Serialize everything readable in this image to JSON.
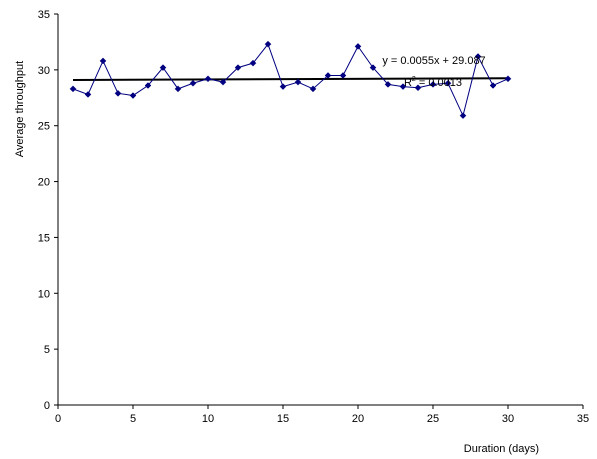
{
  "chart_data": {
    "type": "scatter",
    "xlabel": "Duration (days)",
    "ylabel": "Average throughput",
    "xlim": [
      0,
      35
    ],
    "ylim": [
      0,
      35
    ],
    "xticks": [
      0,
      5,
      10,
      15,
      20,
      25,
      30,
      35
    ],
    "yticks": [
      0,
      5,
      10,
      15,
      20,
      25,
      30,
      35
    ],
    "grid": false,
    "series": [
      {
        "color": "#000080",
        "marker": "diamond",
        "x": [
          1,
          2,
          3,
          4,
          5,
          6,
          7,
          8,
          9,
          10,
          11,
          12,
          13,
          14,
          15,
          16,
          17,
          18,
          19,
          20,
          21,
          22,
          23,
          24,
          25,
          26,
          27,
          28,
          29,
          30
        ],
        "y": [
          28.3,
          27.8,
          30.8,
          27.9,
          27.7,
          28.6,
          30.2,
          28.3,
          28.8,
          29.2,
          28.9,
          30.2,
          30.6,
          32.3,
          28.5,
          28.9,
          28.3,
          29.5,
          29.5,
          32.1,
          30.2,
          28.7,
          28.5,
          28.4,
          28.7,
          28.8,
          25.9,
          31.2,
          28.6,
          29.2
        ]
      }
    ],
    "trendline": {
      "type": "linear",
      "slope": 0.0055,
      "intercept": 29.087,
      "x_range": [
        1,
        30
      ],
      "color": "#000000",
      "equation_prefix": "y = 0.0055x + 29.087",
      "r2_base": "R",
      "r2_exp": "2",
      "r2_value": " = 0.0013"
    }
  }
}
